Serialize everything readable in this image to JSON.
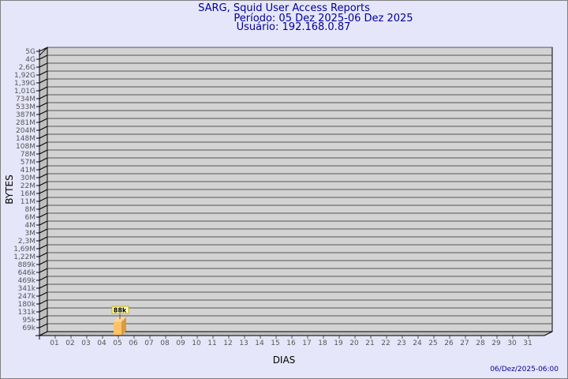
{
  "title": "SARG, Squid User Access Reports",
  "period": "Período: 05 Dez 2025-06 Dez 2025",
  "user": "Usuário: 192.168.0.87",
  "footer_timestamp": "06/Dez/2025-06:00",
  "chart_data": {
    "type": "bar",
    "xlabel": "DIAS",
    "ylabel": "BYTES",
    "y_scale": "log",
    "y_tick_labels": [
      "69k",
      "95k",
      "131k",
      "180k",
      "247k",
      "341k",
      "469k",
      "646k",
      "889k",
      "1,22M",
      "1,69M",
      "2,3M",
      "3M",
      "4M",
      "6M",
      "8M",
      "11M",
      "16M",
      "22M",
      "30M",
      "41M",
      "57M",
      "78M",
      "108M",
      "148M",
      "204M",
      "281M",
      "387M",
      "533M",
      "734M",
      "1,01G",
      "1,39G",
      "1,92G",
      "2,6G",
      "4G",
      "5G"
    ],
    "categories": [
      "01",
      "02",
      "03",
      "04",
      "05",
      "06",
      "07",
      "08",
      "09",
      "10",
      "11",
      "12",
      "13",
      "14",
      "15",
      "16",
      "17",
      "18",
      "19",
      "20",
      "21",
      "22",
      "23",
      "24",
      "25",
      "26",
      "27",
      "28",
      "29",
      "30",
      "31"
    ],
    "bars": [
      {
        "category": "05",
        "value_label": "88k",
        "value": 88000
      }
    ],
    "grid": true,
    "colors": {
      "bar": "#ffc266",
      "wall": "#d3d3d3",
      "background": "#e6e6fa",
      "title": "#000099"
    }
  }
}
